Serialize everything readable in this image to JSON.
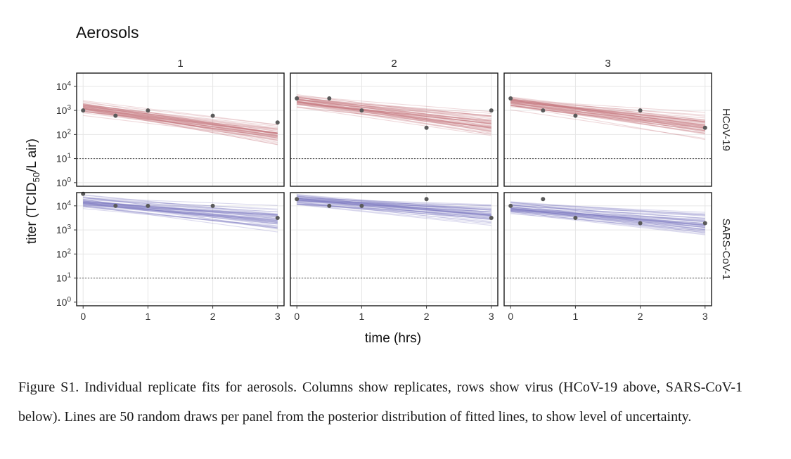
{
  "chart_data": {
    "type": "faceted-scatter-line",
    "title": "Aerosols",
    "xlabel": "time (hrs)",
    "ylabel": "titer (TCID",
    "ylabel_sub": "50",
    "ylabel_suffix": "/L air)",
    "x_ticks": [
      0,
      1,
      2,
      3
    ],
    "xlim": [
      -0.1,
      3.1
    ],
    "ylim_log10": [
      -0.15,
      4.55
    ],
    "y_ticks_log10": [
      0,
      1,
      2,
      3,
      4
    ],
    "y_tick_base": "10",
    "detection_limit_log10": 1,
    "draws_per_panel": 50,
    "columns": [
      "1",
      "2",
      "3"
    ],
    "rows": [
      {
        "name": "HCoV-19",
        "color": "#c5767c",
        "panels": [
          {
            "points": [
              [
                0,
                3.0
              ],
              [
                0.5,
                2.78
              ],
              [
                1,
                3.0
              ],
              [
                2,
                2.78
              ],
              [
                3,
                2.5
              ]
            ],
            "fit": [
              3.12,
              -0.38
            ]
          },
          {
            "points": [
              [
                0,
                3.5
              ],
              [
                0.5,
                3.5
              ],
              [
                1,
                3.0
              ],
              [
                2,
                2.28
              ],
              [
                3,
                3.0
              ]
            ],
            "fit": [
              3.4,
              -0.33
            ]
          },
          {
            "points": [
              [
                0,
                3.5
              ],
              [
                0.5,
                3.0
              ],
              [
                1,
                2.78
              ],
              [
                2,
                3.0
              ],
              [
                3,
                2.28
              ]
            ],
            "fit": [
              3.35,
              -0.33
            ]
          }
        ]
      },
      {
        "name": "SARS-CoV-1",
        "color": "#7d79c3",
        "panels": [
          {
            "points": [
              [
                0,
                4.5
              ],
              [
                0.5,
                4.0
              ],
              [
                1,
                4.0
              ],
              [
                2,
                4.0
              ],
              [
                3,
                3.5
              ]
            ],
            "fit": [
              4.2,
              -0.26
            ]
          },
          {
            "points": [
              [
                0,
                4.28
              ],
              [
                0.5,
                4.0
              ],
              [
                1,
                4.0
              ],
              [
                2,
                4.28
              ],
              [
                3,
                3.5
              ]
            ],
            "fit": [
              4.25,
              -0.2
            ]
          },
          {
            "points": [
              [
                0,
                4.0
              ],
              [
                0.5,
                4.28
              ],
              [
                1,
                3.5
              ],
              [
                2,
                3.28
              ],
              [
                3,
                3.28
              ]
            ],
            "fit": [
              3.9,
              -0.23
            ]
          }
        ]
      }
    ]
  },
  "caption": "Figure S1. Individual replicate fits for aerosols. Columns show replicates, rows show virus (HCoV-19 above, SARS-CoV-1 below). Lines are 50 random draws per panel from the posterior distribution of fitted lines, to show level of uncertainty."
}
